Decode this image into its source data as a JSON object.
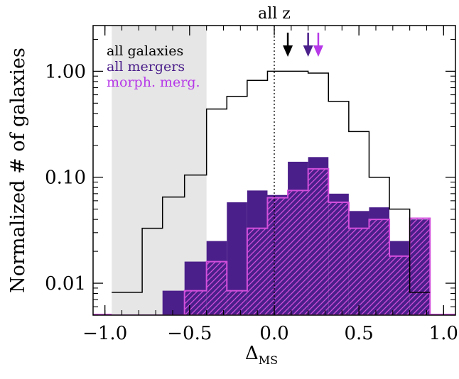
{
  "chart_data": {
    "type": "histogram-step",
    "title": "all z",
    "xlabel_main": "Δ",
    "xlabel_sub": "MS",
    "ylabel": "Normalized # of galaxies",
    "xlim": [
      -1.07,
      1.07
    ],
    "ylim": [
      0.005,
      2.7
    ],
    "yscale": "log",
    "x_ticks": [
      -1.0,
      -0.5,
      0.0,
      0.5,
      1.0
    ],
    "x_tick_labels": [
      "−1.0",
      "−0.5",
      "0.0",
      "0.5",
      "1.0"
    ],
    "y_ticks": [
      0.01,
      0.1,
      1.0
    ],
    "y_tick_labels": [
      "0.01",
      "0.10",
      "1.00"
    ],
    "excluded_region": [
      -0.96,
      -0.4
    ],
    "reference_line_x": 0.0,
    "bin_edges": [
      -0.96,
      -0.78,
      -0.66,
      -0.53,
      -0.4,
      -0.28,
      -0.16,
      -0.04,
      0.08,
      0.2,
      0.32,
      0.44,
      0.56,
      0.68,
      0.8,
      0.92
    ],
    "series": [
      {
        "name": "all galaxies",
        "style": "step",
        "color": "#000000",
        "values": [
          0.0082,
          0.033,
          0.065,
          0.105,
          0.44,
          0.58,
          0.82,
          1.0,
          1.0,
          0.96,
          0.52,
          0.27,
          0.1,
          0.05,
          0.0082
        ]
      },
      {
        "name": "all mergers",
        "style": "filled",
        "color": "#4b1f8a",
        "values": [
          0.005,
          0.005,
          0.0085,
          0.016,
          0.025,
          0.058,
          0.075,
          0.068,
          0.14,
          0.155,
          0.07,
          0.048,
          0.052,
          0.025,
          0.04
        ]
      },
      {
        "name": "morph. merg.",
        "style": "hatched",
        "color": "#d24fdc",
        "values": [
          0.005,
          0.005,
          0.005,
          0.0085,
          0.016,
          0.0085,
          0.033,
          0.064,
          0.075,
          0.12,
          0.058,
          0.033,
          0.04,
          0.018,
          0.041
        ]
      }
    ],
    "arrows": [
      {
        "x": 0.08,
        "color": "#000000"
      },
      {
        "x": 0.2,
        "color": "#4b1f8a"
      },
      {
        "x": 0.26,
        "color": "#b638e8"
      }
    ],
    "legend_position": "top-left",
    "legend_colors": [
      "#000000",
      "#4b1f8a",
      "#b638e8"
    ]
  }
}
